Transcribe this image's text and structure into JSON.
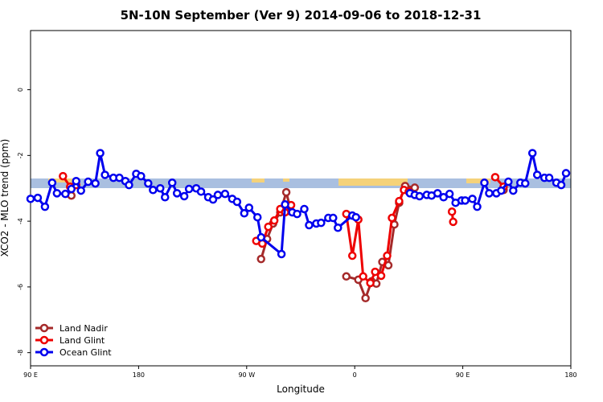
{
  "chart_data": {
    "type": "line",
    "title": "5N-10N September (Ver 9)   2014-09-06 to 2018-12-31",
    "x_label": "Longitude",
    "y_label": "XCO2 - MLO trend (ppm)",
    "xlim": [
      90,
      540
    ],
    "ylim": [
      -8.4,
      1.8
    ],
    "xticks": [
      {
        "value": 90,
        "label": "90 E"
      },
      180,
      {
        "value": 270,
        "label": "90 W"
      },
      {
        "value": 360,
        "label": "0"
      },
      {
        "value": 450,
        "label": "90 E"
      },
      {
        "value": 540,
        "label": "180"
      }
    ],
    "yticks": [
      0,
      -2,
      -4,
      -6,
      -8
    ],
    "legend": "bottom-left",
    "series": [
      {
        "name": "Land Nadir",
        "color": "#a52a2a",
        "x": [
          124,
          null,
          282,
          287,
          292,
          298,
          303,
          307,
          null,
          353,
          363,
          369,
          374,
          378,
          383,
          388,
          393,
          397,
          402,
          410,
          null,
          484
        ],
        "values": [
          -3.22,
          null,
          -5.15,
          -4.54,
          -4.07,
          -3.73,
          -3.12,
          -3.71,
          null,
          -5.68,
          -5.78,
          -6.34,
          -5.83,
          -5.9,
          -5.24,
          -5.34,
          -4.1,
          -3.44,
          -2.93,
          -2.98,
          null,
          -3.05
        ]
      },
      {
        "name": "Land Glint",
        "color": "#ee0000",
        "x": [
          117,
          123,
          128,
          null,
          278,
          283,
          288,
          293,
          298,
          302,
          307,
          null,
          353,
          358,
          363,
          367,
          373,
          377,
          382,
          387,
          391,
          397,
          401,
          405,
          null,
          441,
          442,
          null,
          477,
          484
        ],
        "values": [
          -2.63,
          -2.95,
          -2.9,
          null,
          -4.6,
          -4.68,
          -4.17,
          -3.98,
          -3.63,
          -3.73,
          -3.51,
          null,
          -3.78,
          -5.05,
          -3.95,
          -5.68,
          -5.88,
          -5.54,
          -5.66,
          -5.05,
          -3.9,
          -3.39,
          -3.05,
          -3.1,
          null,
          -3.71,
          -4.02,
          null,
          -2.66,
          -2.95
        ]
      },
      {
        "name": "Ocean Glint",
        "color": "#0000ee",
        "x": [
          90,
          96,
          102,
          108,
          112,
          119,
          124,
          128,
          132,
          138,
          144,
          148,
          152,
          159,
          164,
          169,
          172,
          178,
          182,
          188,
          192,
          198,
          202,
          208,
          212,
          218,
          222,
          228,
          232,
          238,
          242,
          246,
          252,
          258,
          262,
          268,
          272,
          279,
          282,
          299,
          302,
          308,
          312,
          318,
          322,
          328,
          332,
          338,
          342,
          346,
          358,
          361,
          null,
          406,
          410,
          414,
          420,
          424,
          429,
          434,
          439,
          444,
          449,
          452,
          458,
          462,
          468,
          472,
          478,
          482,
          488,
          492,
          498,
          502,
          508,
          512,
          518,
          522,
          528,
          532,
          536
        ],
        "values": [
          -3.32,
          -3.29,
          -3.56,
          -2.83,
          -3.15,
          -3.17,
          -3.02,
          -2.78,
          -3.07,
          -2.8,
          -2.85,
          -1.93,
          -2.59,
          -2.68,
          -2.68,
          -2.78,
          -2.9,
          -2.56,
          -2.63,
          -2.85,
          -3.05,
          -3.0,
          -3.27,
          -2.83,
          -3.15,
          -3.24,
          -3.02,
          -3.0,
          -3.1,
          -3.27,
          -3.34,
          -3.2,
          -3.17,
          -3.32,
          -3.41,
          -3.76,
          -3.59,
          -3.88,
          -4.49,
          -5.0,
          -3.49,
          -3.73,
          -3.78,
          -3.63,
          -4.12,
          -4.07,
          -4.05,
          -3.9,
          -3.9,
          -4.2,
          -3.83,
          -3.88,
          null,
          -3.15,
          -3.2,
          -3.24,
          -3.2,
          -3.22,
          -3.15,
          -3.27,
          -3.17,
          -3.44,
          -3.37,
          -3.37,
          -3.32,
          -3.56,
          -2.83,
          -3.15,
          -3.15,
          -3.07,
          -2.8,
          -3.07,
          -2.83,
          -2.85,
          -1.93,
          -2.59,
          -2.68,
          -2.68,
          -2.83,
          -2.9,
          -2.54
        ]
      }
    ]
  }
}
